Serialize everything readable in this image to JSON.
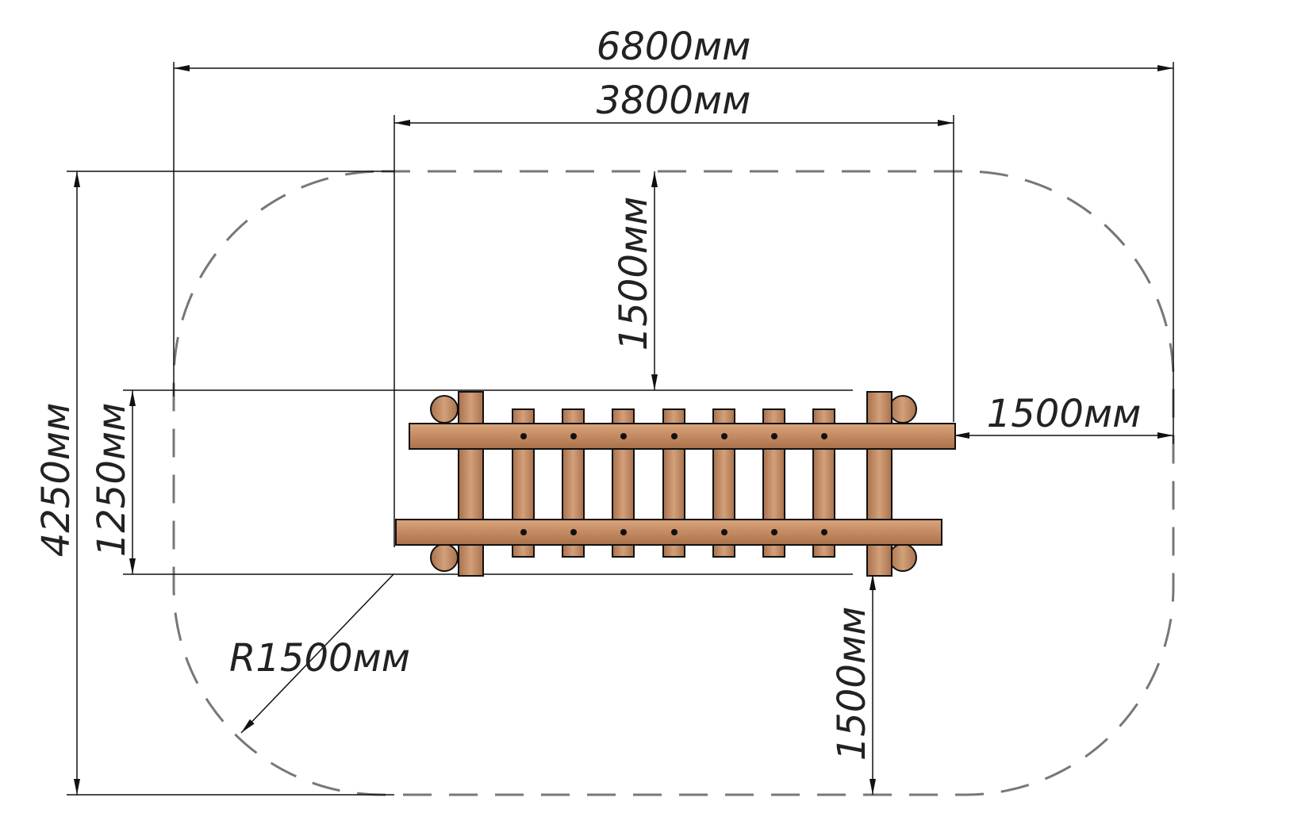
{
  "dimensions": {
    "overall_width": "6800мм",
    "inner_width": "3800мм",
    "top_clearance": "1500мм",
    "right_clearance": "1500мм",
    "bottom_clearance": "1500мм",
    "overall_height": "4250мм",
    "equipment_depth": "1250мм",
    "corner_radius": "R1500мм"
  },
  "colors": {
    "wood": "#c8916a",
    "wood_dark": "#a86f4a",
    "line": "#111111",
    "zone_dash": "#777777"
  }
}
